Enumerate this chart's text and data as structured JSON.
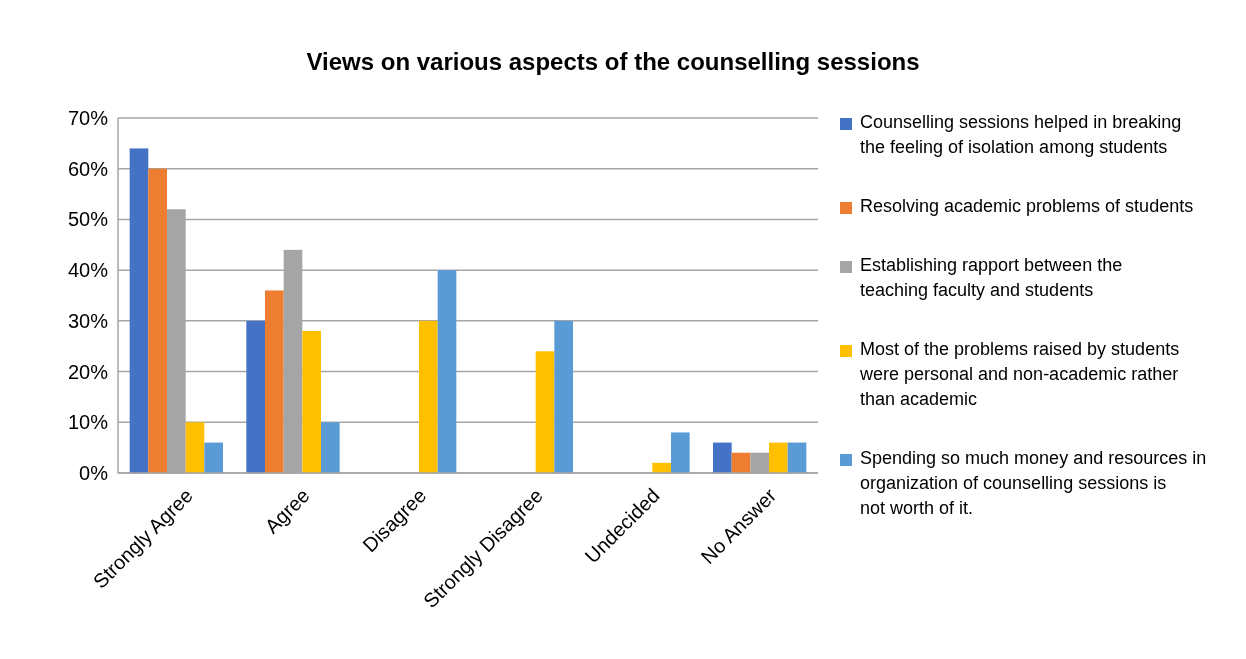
{
  "chart_data": {
    "type": "bar",
    "title": "Views on various aspects of the counselling sessions",
    "categories": [
      "Strongly Agree",
      "Agree",
      "Disagree",
      "Strongly Disagree",
      "Undecided",
      "No Answer"
    ],
    "series": [
      {
        "name": "Counselling sessions helped in breaking the feeling of isolation among students",
        "color": "#4472c4",
        "values": [
          64,
          30,
          0,
          0,
          0,
          6
        ]
      },
      {
        "name": "Resolving academic problems of students",
        "color": "#ed7d31",
        "values": [
          60,
          36,
          0,
          0,
          0,
          4
        ]
      },
      {
        "name": "Establishing rapport between the teaching faculty and students",
        "color": "#a5a5a5",
        "values": [
          52,
          44,
          0,
          0,
          0,
          4
        ]
      },
      {
        "name": "Most of the problems raised by students were personal and non-academic rather than academic",
        "color": "#ffc000",
        "values": [
          10,
          28,
          30,
          24,
          2,
          6
        ]
      },
      {
        "name": "Spending so much money and resources in organization of counselling sessions is not worth of it.",
        "color": "#5b9bd5",
        "values": [
          6,
          10,
          40,
          30,
          8,
          6
        ]
      }
    ],
    "ylim": [
      0,
      70
    ],
    "yticks": [
      {
        "value": 0,
        "label": "0%"
      },
      {
        "value": 10,
        "label": "10%"
      },
      {
        "value": 20,
        "label": "20%"
      },
      {
        "value": 30,
        "label": "30%"
      },
      {
        "value": 40,
        "label": "40%"
      },
      {
        "value": 50,
        "label": "50%"
      },
      {
        "value": 60,
        "label": "60%"
      },
      {
        "value": 70,
        "label": "70%"
      }
    ],
    "grid": "y",
    "legend": "right"
  }
}
